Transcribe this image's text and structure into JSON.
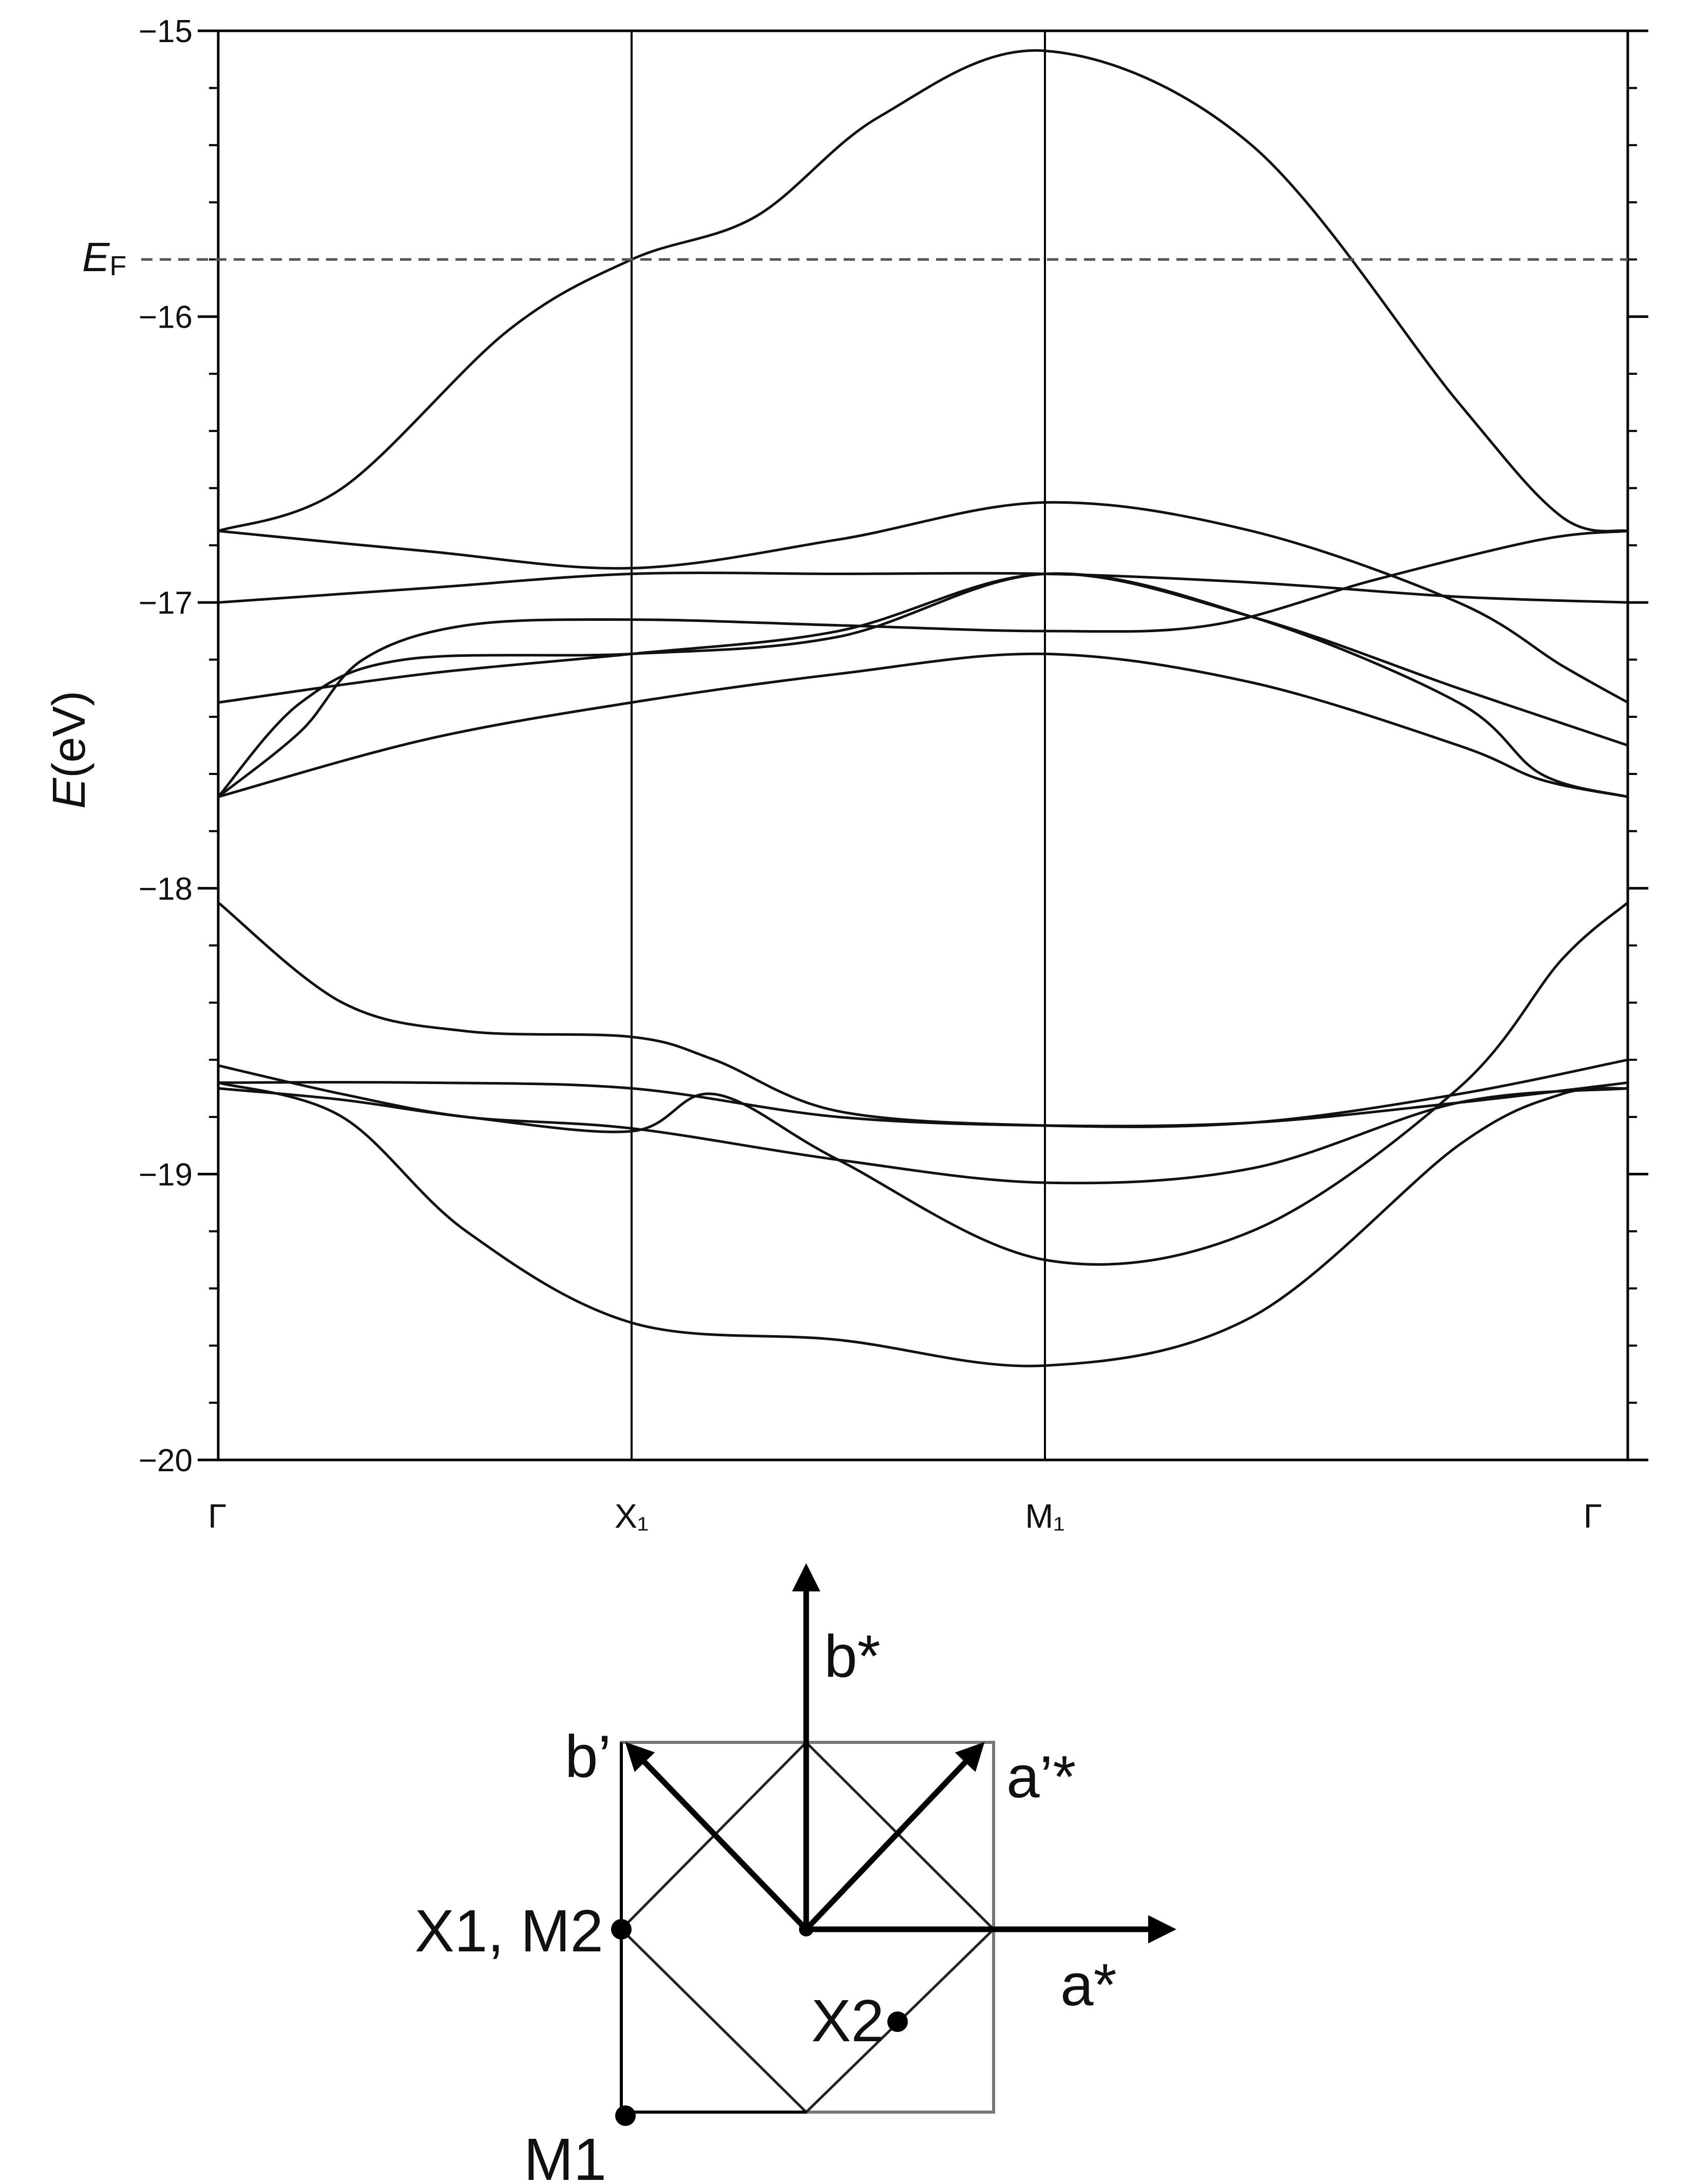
{
  "chart_data": {
    "type": "line",
    "title": "",
    "ylabel": "E(eV)",
    "ylabel_italic": "E",
    "ylabel_unit": "(eV)",
    "ylim": [
      -20,
      -15
    ],
    "y_ticks": [
      {
        "value": -15,
        "label": "−15"
      },
      {
        "value": -16,
        "label": "−16"
      },
      {
        "value": -17,
        "label": "−17"
      },
      {
        "value": -18,
        "label": "−18"
      },
      {
        "value": -19,
        "label": "−19"
      },
      {
        "value": -20,
        "label": "−20"
      }
    ],
    "y_minor_step": 0.2,
    "x_path": [
      {
        "label": "Γ",
        "pos": 0
      },
      {
        "label": "X₁",
        "pos": 1
      },
      {
        "label": "M₁",
        "pos": 2
      },
      {
        "label": "Γ",
        "pos": 3.41
      }
    ],
    "fermi_level": {
      "value": -15.8,
      "label": "E",
      "subscript": "F"
    },
    "bands": [
      {
        "name": "band-1",
        "points": [
          [
            0,
            -16.75
          ],
          [
            0.3,
            -16.6
          ],
          [
            0.7,
            -16.05
          ],
          [
            1,
            -15.8
          ],
          [
            1.3,
            -15.65
          ],
          [
            1.6,
            -15.3
          ],
          [
            2,
            -15.07
          ],
          [
            2.5,
            -15.4
          ],
          [
            3,
            -16.3
          ],
          [
            3.25,
            -16.7
          ],
          [
            3.41,
            -16.75
          ]
        ]
      },
      {
        "name": "band-2",
        "points": [
          [
            0,
            -16.75
          ],
          [
            0.5,
            -16.82
          ],
          [
            1,
            -16.88
          ],
          [
            1.5,
            -16.78
          ],
          [
            2,
            -16.65
          ],
          [
            2.5,
            -16.75
          ],
          [
            3,
            -17.0
          ],
          [
            3.25,
            -17.22
          ],
          [
            3.41,
            -17.35
          ]
        ]
      },
      {
        "name": "band-3",
        "points": [
          [
            0,
            -17.0
          ],
          [
            0.5,
            -16.95
          ],
          [
            1,
            -16.9
          ],
          [
            1.5,
            -16.9
          ],
          [
            2,
            -16.9
          ],
          [
            2.5,
            -16.93
          ],
          [
            3,
            -16.98
          ],
          [
            3.41,
            -17.0
          ]
        ]
      },
      {
        "name": "band-4",
        "points": [
          [
            0,
            -17.35
          ],
          [
            0.5,
            -17.25
          ],
          [
            1,
            -17.18
          ],
          [
            1.5,
            -17.1
          ],
          [
            2,
            -16.9
          ],
          [
            2.5,
            -17.05
          ],
          [
            3,
            -17.3
          ],
          [
            3.41,
            -17.5
          ]
        ]
      },
      {
        "name": "band-5",
        "points": [
          [
            0,
            -17.68
          ],
          [
            0.2,
            -17.45
          ],
          [
            0.35,
            -17.2
          ],
          [
            0.6,
            -17.08
          ],
          [
            1,
            -17.06
          ],
          [
            1.5,
            -17.08
          ],
          [
            2,
            -17.1
          ],
          [
            2.4,
            -17.08
          ],
          [
            2.8,
            -16.92
          ],
          [
            3.2,
            -16.78
          ],
          [
            3.41,
            -16.75
          ]
        ]
      },
      {
        "name": "band-6",
        "points": [
          [
            0,
            -17.68
          ],
          [
            0.2,
            -17.35
          ],
          [
            0.45,
            -17.2
          ],
          [
            1,
            -17.18
          ],
          [
            1.5,
            -17.12
          ],
          [
            2,
            -16.9
          ],
          [
            2.5,
            -17.05
          ],
          [
            3,
            -17.35
          ],
          [
            3.2,
            -17.6
          ],
          [
            3.41,
            -17.68
          ]
        ]
      },
      {
        "name": "band-7",
        "points": [
          [
            0,
            -17.68
          ],
          [
            0.5,
            -17.48
          ],
          [
            1,
            -17.35
          ],
          [
            1.5,
            -17.25
          ],
          [
            2,
            -17.18
          ],
          [
            2.5,
            -17.28
          ],
          [
            3,
            -17.5
          ],
          [
            3.2,
            -17.62
          ],
          [
            3.41,
            -17.68
          ]
        ]
      },
      {
        "name": "band-8",
        "points": [
          [
            0,
            -18.05
          ],
          [
            0.3,
            -18.4
          ],
          [
            0.6,
            -18.5
          ],
          [
            1,
            -18.52
          ],
          [
            1.2,
            -18.6
          ],
          [
            1.5,
            -18.78
          ],
          [
            2,
            -18.83
          ],
          [
            2.5,
            -18.82
          ],
          [
            3,
            -18.72
          ],
          [
            3.41,
            -18.6
          ]
        ]
      },
      {
        "name": "band-9",
        "points": [
          [
            0,
            -18.68
          ],
          [
            0.5,
            -18.68
          ],
          [
            1,
            -18.7
          ],
          [
            1.5,
            -18.8
          ],
          [
            2,
            -18.83
          ],
          [
            2.5,
            -18.82
          ],
          [
            3,
            -18.75
          ],
          [
            3.41,
            -18.68
          ]
        ]
      },
      {
        "name": "band-10",
        "points": [
          [
            0,
            -18.62
          ],
          [
            0.3,
            -18.72
          ],
          [
            0.6,
            -18.8
          ],
          [
            1,
            -18.84
          ],
          [
            1.5,
            -18.95
          ],
          [
            2,
            -19.03
          ],
          [
            2.5,
            -18.98
          ],
          [
            3,
            -18.75
          ],
          [
            3.41,
            -18.7
          ]
        ]
      },
      {
        "name": "band-11",
        "points": [
          [
            0,
            -18.7
          ],
          [
            0.3,
            -18.74
          ],
          [
            0.6,
            -18.8
          ],
          [
            1,
            -18.85
          ],
          [
            1.2,
            -18.72
          ],
          [
            1.5,
            -18.95
          ],
          [
            2,
            -19.3
          ],
          [
            2.5,
            -19.2
          ],
          [
            3,
            -18.7
          ],
          [
            3.25,
            -18.25
          ],
          [
            3.41,
            -18.05
          ]
        ]
      },
      {
        "name": "band-12",
        "points": [
          [
            0,
            -18.68
          ],
          [
            0.3,
            -18.8
          ],
          [
            0.6,
            -19.2
          ],
          [
            1,
            -19.52
          ],
          [
            1.5,
            -19.58
          ],
          [
            2,
            -19.67
          ],
          [
            2.5,
            -19.5
          ],
          [
            3,
            -18.9
          ],
          [
            3.25,
            -18.72
          ],
          [
            3.41,
            -18.7
          ]
        ]
      }
    ]
  },
  "bz_diagram": {
    "axis_labels": {
      "b_star": "b*",
      "a_star": "a*",
      "b_prime": "b’",
      "a_prime_star": "a’*"
    },
    "points": {
      "x1_m2": "X1, M2",
      "x2": "X2",
      "m1": "M1"
    }
  }
}
